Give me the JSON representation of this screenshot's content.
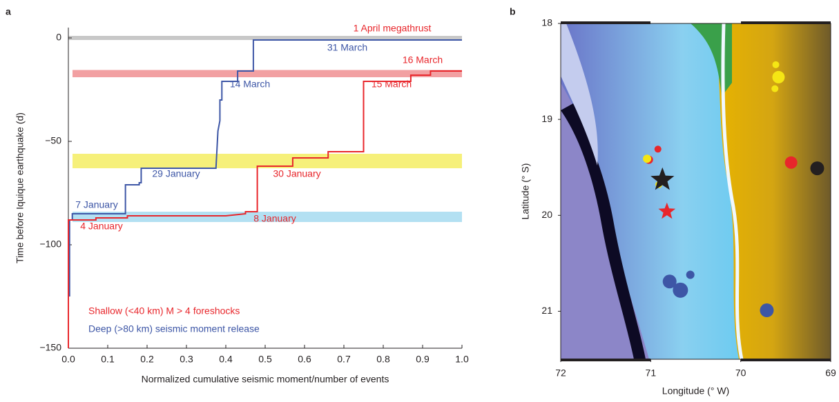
{
  "chart_data": [
    {
      "type": "step-line",
      "panel_label": "a",
      "xlabel": "Normalized cumulative seismic moment/number of events",
      "ylabel": "Time before Iquique earthquake (d)",
      "xlim": [
        0,
        1
      ],
      "ylim": [
        -150,
        5
      ],
      "xticks": [
        {
          "value": 0,
          "label": "0.0"
        },
        {
          "value": 0.1,
          "label": "0.1"
        },
        {
          "value": 0.2,
          "label": "0.2"
        },
        {
          "value": 0.3,
          "label": "0.3"
        },
        {
          "value": 0.4,
          "label": "0.4"
        },
        {
          "value": 0.5,
          "label": "0.5"
        },
        {
          "value": 0.6,
          "label": "0.6"
        },
        {
          "value": 0.7,
          "label": "0.7"
        },
        {
          "value": 0.8,
          "label": "0.8"
        },
        {
          "value": 0.9,
          "label": "0.9"
        },
        {
          "value": 1,
          "label": "1.0"
        }
      ],
      "yticks": [
        0,
        {
          "value": -50,
          "label": "−50"
        },
        {
          "value": -100,
          "label": "−100"
        },
        {
          "value": -150,
          "label": "−150"
        }
      ],
      "bands": [
        {
          "range": [
            -1,
            1
          ],
          "color": "#c8c8c8"
        },
        {
          "range": [
            -19,
            -15.5
          ],
          "color": "#f2a0a2"
        },
        {
          "range": [
            -63,
            -56
          ],
          "color": "#f6f07a"
        },
        {
          "range": [
            -89,
            -84
          ],
          "color": "#b3e0f2"
        }
      ],
      "series": [
        {
          "color": "#3d56a6",
          "x": [
            0.003,
            0.003,
            0.01,
            0.01,
            0.145,
            0.145,
            0.18,
            0.18,
            0.185,
            0.185,
            0.375,
            0.38,
            0.385,
            0.385,
            0.39,
            0.39,
            0.43,
            0.43,
            0.47,
            0.47,
            1
          ],
          "values": [
            -125,
            -88,
            -88,
            -85,
            -85,
            -71,
            -71,
            -70,
            -70,
            -63,
            -63,
            -45,
            -40,
            -30,
            -30,
            -21,
            -21,
            -16,
            -16,
            -1,
            -1
          ]
        },
        {
          "color": "#e8262b",
          "x": [
            0,
            0,
            0.07,
            0.07,
            0.15,
            0.15,
            0.4,
            0.45,
            0.45,
            0.48,
            0.48,
            0.57,
            0.57,
            0.66,
            0.66,
            0.75,
            0.75,
            0.87,
            0.87,
            0.92,
            0.92,
            1
          ],
          "values": [
            -150,
            -88,
            -88,
            -87,
            -87,
            -86,
            -86,
            -85,
            -84,
            -84,
            -62,
            -62,
            -58,
            -58,
            -55,
            -55,
            -21,
            -21,
            -18,
            -18,
            -16,
            -16
          ]
        }
      ],
      "annotations": [
        {
          "text": "1 April megathrust",
          "color": "#e8262b"
        },
        {
          "text": "31 March",
          "color": "#3d56a6"
        },
        {
          "text": "16 March",
          "color": "#e8262b"
        },
        {
          "text": "14 March",
          "color": "#3d56a6"
        },
        {
          "text": "15 March",
          "color": "#e8262b"
        },
        {
          "text": "29 January",
          "color": "#3d56a6"
        },
        {
          "text": "30 January",
          "color": "#e8262b"
        },
        {
          "text": "7 January",
          "color": "#3d56a6"
        },
        {
          "text": "4 January",
          "color": "#e8262b"
        },
        {
          "text": "8 January",
          "color": "#e8262b"
        },
        {
          "text": "Shallow (<40 km) M > 4 foreshocks",
          "color": "#e8262b"
        },
        {
          "text": "Deep (>80 km) seismic moment release",
          "color": "#3d56a6"
        }
      ]
    },
    {
      "type": "map-scatter",
      "panel_label": "b",
      "xlabel": "Longitude (° W)",
      "ylabel": "Latitude (° S)",
      "xlim": [
        72,
        69
      ],
      "ylim": [
        18,
        21.5
      ],
      "xticks": [
        72,
        71,
        70,
        69
      ],
      "yticks": [
        18,
        19,
        20,
        21
      ],
      "series": [
        {
          "color": "#e8262b",
          "marker": "circle",
          "x": [
            71.02,
            70.92,
            69.44
          ],
          "values": [
            19.42,
            19.31,
            19.45
          ],
          "sizes": [
            6,
            5,
            9
          ]
        },
        {
          "color": "#f5e614",
          "marker": "circle",
          "x": [
            69.61,
            69.58,
            69.62,
            71.04,
            70.91
          ],
          "values": [
            18.43,
            18.56,
            18.68,
            19.41,
            19.68
          ],
          "sizes": [
            5,
            9,
            5,
            6,
            5
          ]
        },
        {
          "color": "#231f20",
          "marker": "circle",
          "x": [
            69.15
          ],
          "values": [
            19.51
          ],
          "sizes": [
            10
          ]
        },
        {
          "color": "#3d56a6",
          "marker": "circle",
          "x": [
            70.79,
            70.67,
            70.56,
            69.71
          ],
          "values": [
            20.69,
            20.78,
            20.62,
            20.99
          ],
          "sizes": [
            10,
            11,
            6,
            10
          ]
        },
        {
          "color": "#231f20",
          "marker": "star",
          "x": [
            70.87
          ],
          "values": [
            19.63
          ],
          "sizes": [
            18
          ]
        },
        {
          "color": "#e8262b",
          "marker": "star",
          "x": [
            70.82
          ],
          "values": [
            19.96
          ],
          "sizes": [
            13
          ]
        }
      ]
    }
  ]
}
